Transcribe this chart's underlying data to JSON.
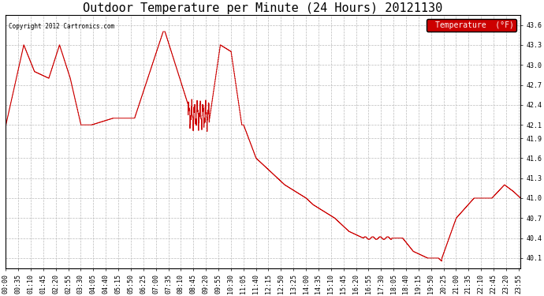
{
  "title": "Outdoor Temperature per Minute (24 Hours) 20121130",
  "copyright_text": "Copyright 2012 Cartronics.com",
  "legend_label": "Temperature  (°F)",
  "legend_bg": "#cc0000",
  "legend_text_color": "#ffffff",
  "line_color": "#cc0000",
  "bg_color": "#ffffff",
  "grid_color": "#bbbbbb",
  "ylim": [
    39.95,
    43.75
  ],
  "yticks": [
    40.1,
    40.4,
    40.7,
    41.0,
    41.3,
    41.6,
    41.9,
    42.1,
    42.4,
    42.7,
    43.0,
    43.3,
    43.6
  ],
  "title_fontsize": 11,
  "tick_fontsize": 6,
  "xtick_interval": 35
}
